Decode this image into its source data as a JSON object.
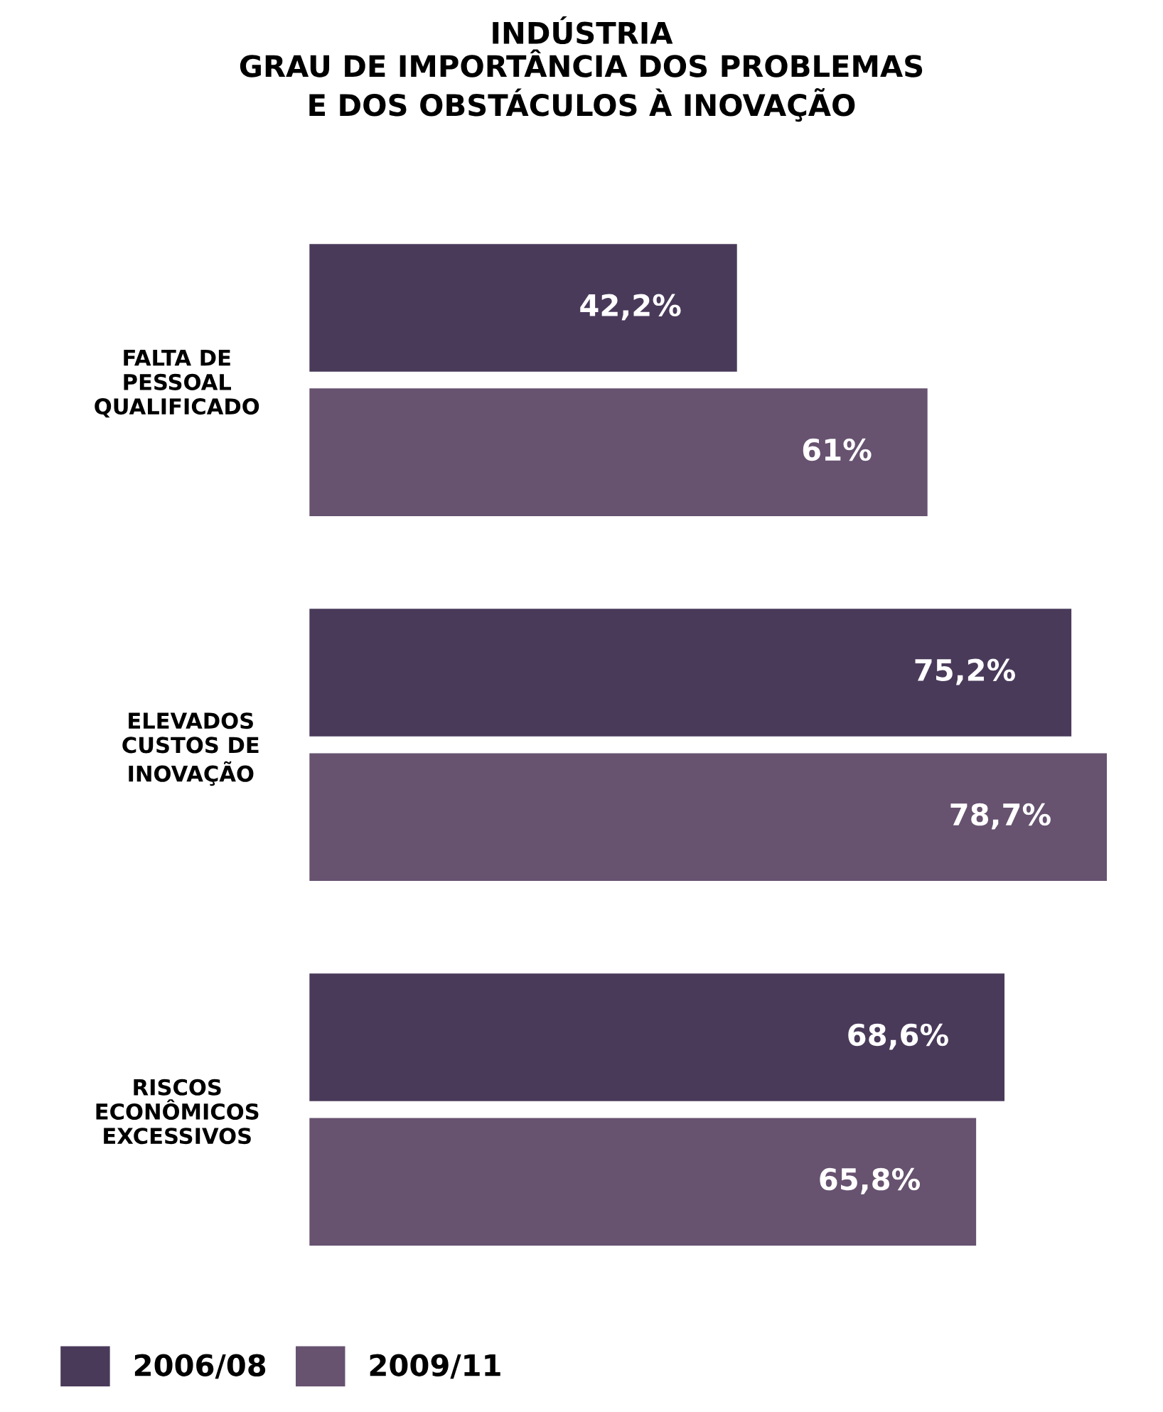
{
  "chart_data": {
    "type": "bar",
    "orientation": "horizontal",
    "title": "INDÚSTRIA\nGRAU DE IMPORTÂNCIA DOS PROBLEMAS\nE DOS OBSTÁCULOS À INOVAÇÃO",
    "categories": [
      "FALTA DE\nPESSOAL\nQUALIFICADO",
      "ELEVADOS\nCUSTOS DE\nINOVAÇÃO",
      "RISCOS\nECONÔMICOS\nEXCESSIVOS"
    ],
    "series": [
      {
        "name": "2006/08",
        "color": "#4a3a5a",
        "values": [
          42.2,
          75.2,
          68.6
        ],
        "value_labels": [
          "42,2%",
          "75,2%",
          "68,6%"
        ]
      },
      {
        "name": "2009/11",
        "color": "#675270",
        "values": [
          61,
          78.7,
          65.8
        ],
        "value_labels": [
          "61%",
          "78,7%",
          "65,8%"
        ]
      }
    ],
    "legend": "bottom left",
    "grid": false
  }
}
